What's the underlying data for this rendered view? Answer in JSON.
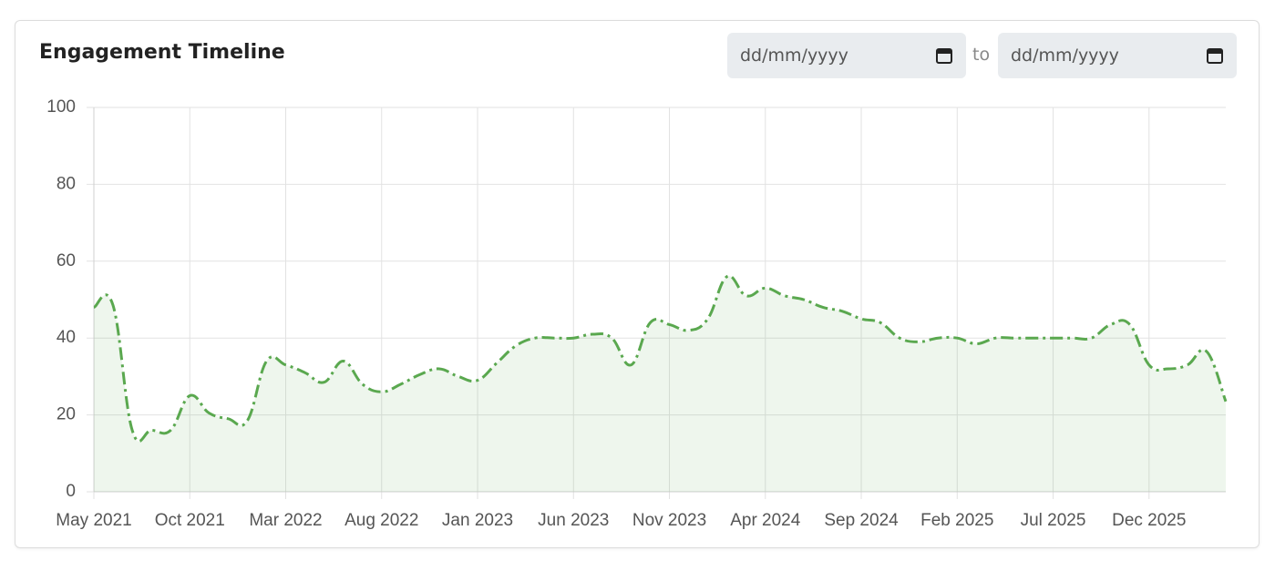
{
  "header": {
    "title": "Engagement Timeline"
  },
  "date_range": {
    "from_placeholder": "dd/mm/yyyy",
    "separator": "to",
    "to_placeholder": "dd/mm/yyyy"
  },
  "chart_data": {
    "type": "line",
    "x": [
      "2021-05",
      "2021-06",
      "2021-07",
      "2021-08",
      "2021-09",
      "2021-10",
      "2021-11",
      "2021-12",
      "2022-01",
      "2022-02",
      "2022-03",
      "2022-04",
      "2022-05",
      "2022-06",
      "2022-07",
      "2022-08",
      "2022-09",
      "2022-10",
      "2022-11",
      "2022-12",
      "2023-01",
      "2023-02",
      "2023-03",
      "2023-04",
      "2023-05",
      "2023-06",
      "2023-07",
      "2023-08",
      "2023-09",
      "2023-10",
      "2023-11",
      "2023-12",
      "2024-01",
      "2024-02",
      "2024-03",
      "2024-04",
      "2024-05",
      "2024-06",
      "2024-07",
      "2024-08",
      "2024-09",
      "2024-10",
      "2024-11",
      "2024-12",
      "2025-01",
      "2025-02",
      "2025-03",
      "2025-04",
      "2025-05",
      "2025-06",
      "2025-07",
      "2025-08",
      "2025-09",
      "2025-10",
      "2025-11",
      "2025-12",
      "2026-01",
      "2026-02",
      "2026-03",
      "2026-04"
    ],
    "series": [
      {
        "color": "#5aa84f",
        "fill": "rgba(90,168,79,0.1)",
        "values": [
          48,
          48.5,
          16,
          16,
          16,
          25,
          20.5,
          19,
          18.5,
          34,
          33,
          31,
          28.5,
          34,
          28,
          26,
          28,
          30.5,
          32,
          30,
          29,
          33.5,
          38,
          40,
          40,
          40,
          41,
          40,
          33,
          44,
          43.5,
          42,
          45,
          56,
          51,
          53,
          51,
          50,
          48,
          47,
          45,
          44,
          40,
          39,
          40,
          40,
          38.5,
          40,
          40,
          40,
          40,
          40,
          40,
          43.5,
          43.5,
          33,
          32,
          33,
          36.5,
          23.5
        ]
      }
    ],
    "xlim": [
      "2021-05",
      "2026-04"
    ],
    "xticks": [
      {
        "value": "2021-05",
        "label": "May 2021"
      },
      {
        "value": "2021-10",
        "label": "Oct 2021"
      },
      {
        "value": "2022-03",
        "label": "Mar 2022"
      },
      {
        "value": "2022-08",
        "label": "Aug 2022"
      },
      {
        "value": "2023-01",
        "label": "Jan 2023"
      },
      {
        "value": "2023-06",
        "label": "Jun 2023"
      },
      {
        "value": "2023-11",
        "label": "Nov 2023"
      },
      {
        "value": "2024-04",
        "label": "Apr 2024"
      },
      {
        "value": "2024-09",
        "label": "Sep 2024"
      },
      {
        "value": "2025-02",
        "label": "Feb 2025"
      },
      {
        "value": "2025-07",
        "label": "Jul 2025"
      },
      {
        "value": "2025-12",
        "label": "Dec 2025"
      }
    ],
    "ylim": [
      0,
      100
    ],
    "yticks": [
      0,
      20,
      40,
      60,
      80,
      100
    ],
    "grid": true,
    "line_style": "dashdot"
  }
}
